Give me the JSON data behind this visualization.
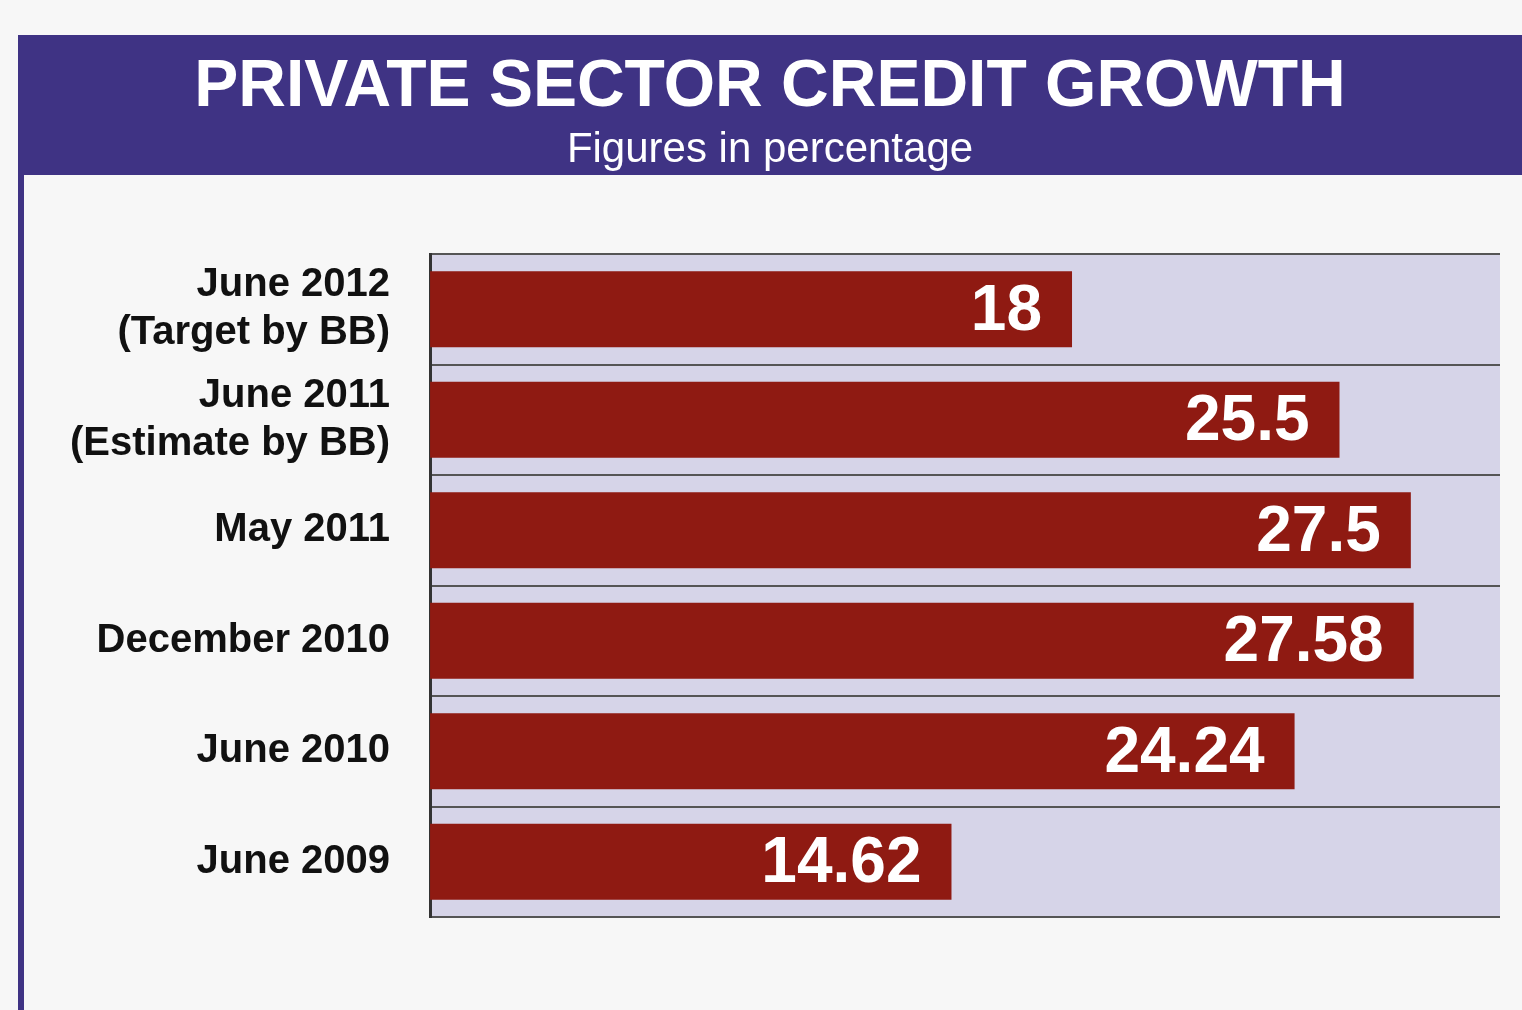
{
  "chart_data": {
    "type": "bar",
    "orientation": "horizontal",
    "title": "PRIVATE SECTOR CREDIT GROWTH",
    "subtitle": "Figures in percentage",
    "categories": [
      "June 2012\n(Target by BB)",
      "June 2011\n(Estimate by BB)",
      "May 2011",
      "December 2010",
      "June 2010",
      "June 2009"
    ],
    "values": [
      18,
      25.5,
      27.5,
      27.58,
      24.24,
      14.62
    ],
    "color": "#8f1a12",
    "xlim": [
      0,
      30
    ],
    "data_labels": true,
    "grid": "y",
    "tick_labels": "y",
    "legend": false
  }
}
